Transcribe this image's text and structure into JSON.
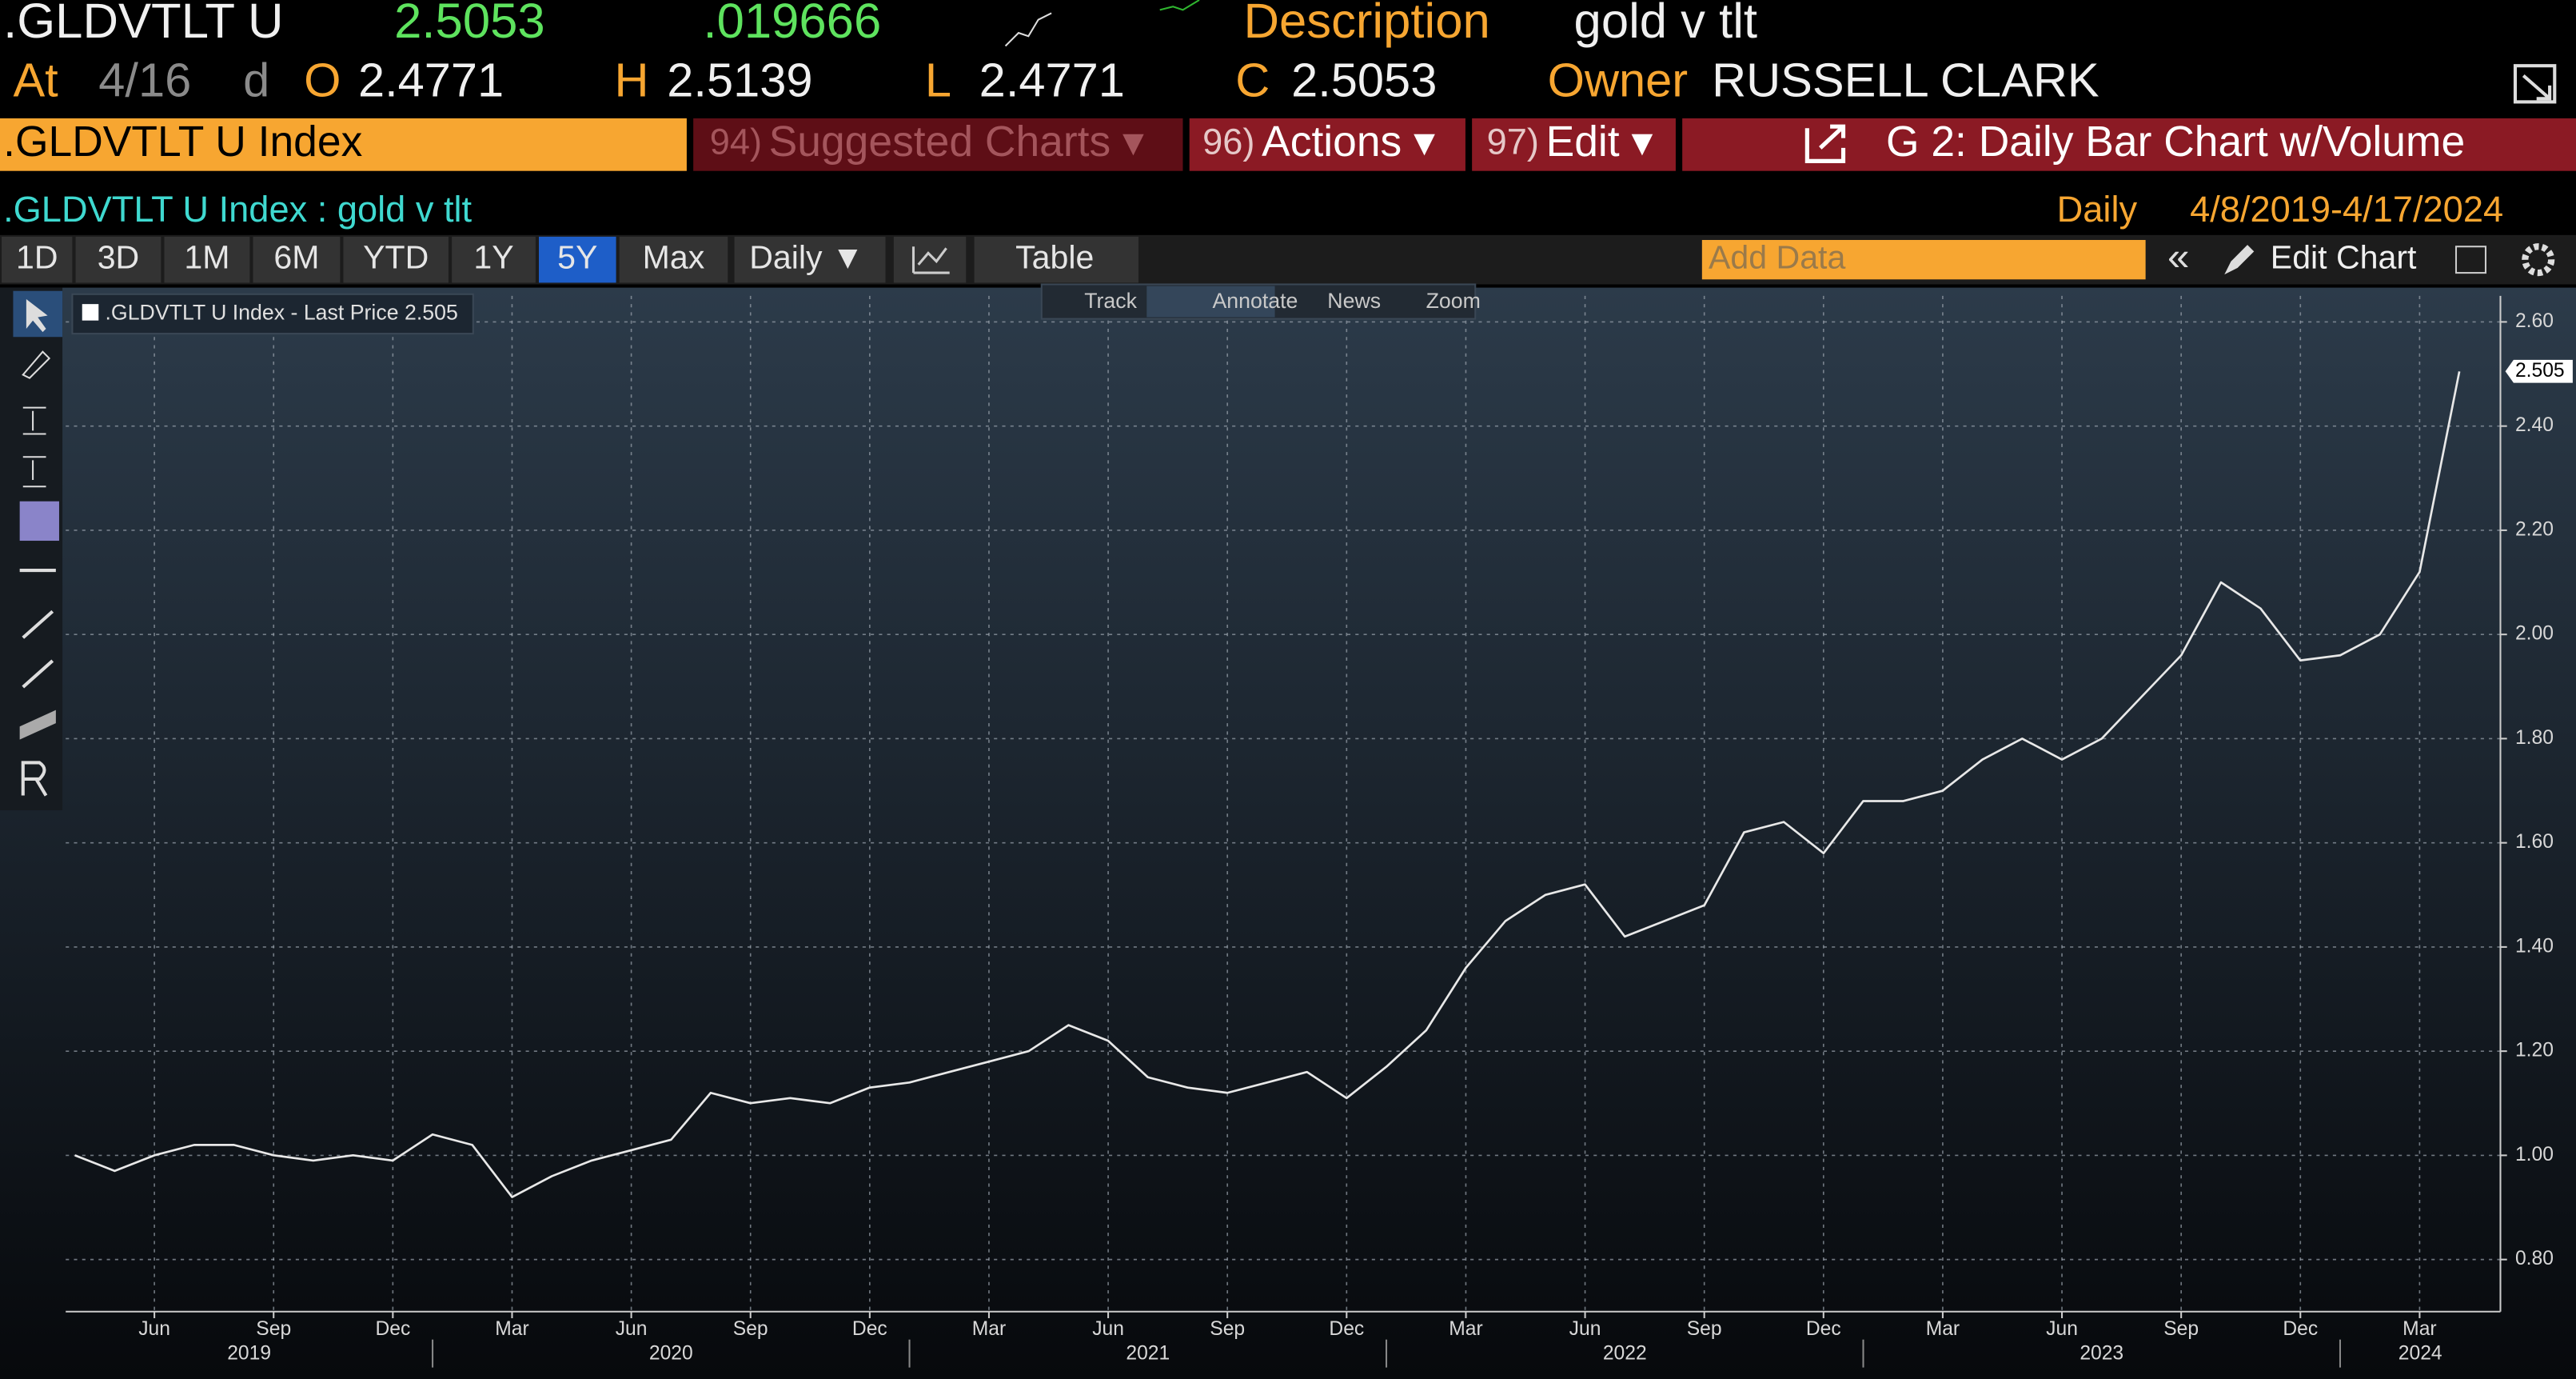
{
  "header": {
    "ticker": ".GLDVTLT U",
    "last": "2.5053",
    "change": ".019666",
    "description_label": "Description",
    "description": "gold v tlt",
    "at_label": "At",
    "date": "4/16",
    "freq": "d",
    "open_label": "O",
    "open": "2.4771",
    "high_label": "H",
    "high": "2.5139",
    "low_label": "L",
    "low": "2.4771",
    "close_label": "C",
    "close": "2.5053",
    "owner_label": "Owner",
    "owner": "RUSSELL CLARK"
  },
  "menu": {
    "security": ".GLDVTLT U Index",
    "items": [
      {
        "num": "94)",
        "label": "Suggested Charts ▾"
      },
      {
        "num": "96)",
        "label": "Actions ▾"
      },
      {
        "num": "97)",
        "label": "Edit ▾"
      }
    ],
    "chart_name": "G 2: Daily Bar Chart w/Volume"
  },
  "toolbar": {
    "ranges": [
      "1D",
      "3D",
      "1M",
      "6M",
      "YTD",
      "1Y",
      "5Y",
      "Max"
    ],
    "selected_range": "5Y",
    "period": "Daily ▼",
    "table": "Table",
    "add_data": "Add Data",
    "edit_chart": "Edit Chart"
  },
  "chart_data": {
    "type": "line",
    "title": ".GLDVTLT U Index : gold v tlt",
    "frequency": "Daily",
    "date_range": "4/8/2019-4/17/2024",
    "tools": [
      "Track",
      "Annotate",
      "News",
      "Zoom"
    ],
    "x": [
      "2019-04",
      "2019-05",
      "2019-06",
      "2019-07",
      "2019-08",
      "2019-09",
      "2019-10",
      "2019-11",
      "2019-12",
      "2020-01",
      "2020-02",
      "2020-03",
      "2020-04",
      "2020-05",
      "2020-06",
      "2020-07",
      "2020-08",
      "2020-09",
      "2020-10",
      "2020-11",
      "2020-12",
      "2021-01",
      "2021-02",
      "2021-03",
      "2021-04",
      "2021-05",
      "2021-06",
      "2021-07",
      "2021-08",
      "2021-09",
      "2021-10",
      "2021-11",
      "2021-12",
      "2022-01",
      "2022-02",
      "2022-03",
      "2022-04",
      "2022-05",
      "2022-06",
      "2022-07",
      "2022-08",
      "2022-09",
      "2022-10",
      "2022-11",
      "2022-12",
      "2023-01",
      "2023-02",
      "2023-03",
      "2023-04",
      "2023-05",
      "2023-06",
      "2023-07",
      "2023-08",
      "2023-09",
      "2023-10",
      "2023-11",
      "2023-12",
      "2024-01",
      "2024-02",
      "2024-03",
      "2024-04"
    ],
    "series": [
      {
        "name": ".GLDVTLT U Index - Last Price 2.505",
        "color": "#e8e8e8",
        "values": [
          1.0,
          0.97,
          1.0,
          1.02,
          1.02,
          1.0,
          0.99,
          1.0,
          0.99,
          1.04,
          1.02,
          0.92,
          0.96,
          0.99,
          1.01,
          1.03,
          1.12,
          1.1,
          1.11,
          1.1,
          1.13,
          1.14,
          1.16,
          1.18,
          1.2,
          1.25,
          1.22,
          1.15,
          1.13,
          1.12,
          1.14,
          1.16,
          1.11,
          1.17,
          1.24,
          1.36,
          1.45,
          1.5,
          1.52,
          1.42,
          1.45,
          1.48,
          1.62,
          1.64,
          1.58,
          1.68,
          1.68,
          1.7,
          1.76,
          1.8,
          1.76,
          1.8,
          1.88,
          1.96,
          2.1,
          2.05,
          1.95,
          1.96,
          2.0,
          2.12,
          2.505
        ]
      }
    ],
    "ylim": [
      0.7,
      2.65
    ],
    "yticks": [
      {
        "value": 0.8,
        "label": "0.80"
      },
      {
        "value": 1,
        "label": "1.00"
      },
      {
        "value": 1.2,
        "label": "1.20"
      },
      {
        "value": 1.4,
        "label": "1.40"
      },
      {
        "value": 1.6,
        "label": "1.60"
      },
      {
        "value": 1.8,
        "label": "1.80"
      },
      {
        "value": 2,
        "label": "2.00"
      },
      {
        "value": 2.2,
        "label": "2.20"
      },
      {
        "value": 2.4,
        "label": "2.40"
      },
      {
        "value": 2.6,
        "label": "2.60"
      }
    ],
    "xticks": [
      {
        "value": "2019-06",
        "label": "Jun"
      },
      {
        "value": "2019-09",
        "label": "Sep"
      },
      {
        "value": "2019-12",
        "label": "Dec"
      },
      {
        "value": "2020-03",
        "label": "Mar"
      },
      {
        "value": "2020-06",
        "label": "Jun"
      },
      {
        "value": "2020-09",
        "label": "Sep"
      },
      {
        "value": "2020-12",
        "label": "Dec"
      },
      {
        "value": "2021-03",
        "label": "Mar"
      },
      {
        "value": "2021-06",
        "label": "Jun"
      },
      {
        "value": "2021-09",
        "label": "Sep"
      },
      {
        "value": "2021-12",
        "label": "Dec"
      },
      {
        "value": "2022-03",
        "label": "Mar"
      },
      {
        "value": "2022-06",
        "label": "Jun"
      },
      {
        "value": "2022-09",
        "label": "Sep"
      },
      {
        "value": "2022-12",
        "label": "Dec"
      },
      {
        "value": "2023-03",
        "label": "Mar"
      },
      {
        "value": "2023-06",
        "label": "Jun"
      },
      {
        "value": "2023-09",
        "label": "Sep"
      },
      {
        "value": "2023-12",
        "label": "Dec"
      },
      {
        "value": "2024-03",
        "label": "Mar"
      }
    ],
    "x_years": [
      "2019",
      "2020",
      "2021",
      "2022",
      "2023",
      "2024"
    ],
    "grid": true
  }
}
